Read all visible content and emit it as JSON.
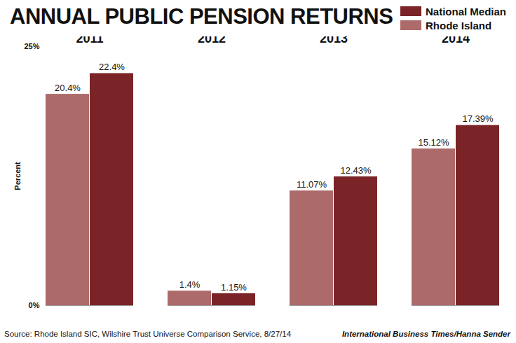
{
  "chart_data": {
    "type": "bar",
    "title": "ANNUAL PUBLIC PENSION RETURNS",
    "y_label": "Percent",
    "source": "Source: Rhode Island SIC, Wilshire Trust Universe Comparison Service, 8/27/14",
    "credit": "International Business Times/Hanna Sender",
    "categories": [
      "2011",
      "2012",
      "2013",
      "2014"
    ],
    "series": [
      {
        "name": "National Median",
        "color": "#7a2428",
        "values": [
          22.4,
          1.15,
          12.43,
          17.39
        ],
        "value_labels": [
          "22.4%",
          "1.15%",
          "12.43%",
          "17.39%"
        ]
      },
      {
        "name": "Rhode Island",
        "color": "#ad6a6b",
        "values": [
          20.4,
          1.4,
          11.07,
          15.12
        ],
        "value_labels": [
          "20.4%",
          "1.4%",
          "11.07%",
          "15.12%"
        ]
      }
    ],
    "ylim": [
      0,
      25
    ],
    "yticks": [
      {
        "value": 0,
        "label": "0%"
      },
      {
        "value": 25,
        "label": "25%"
      }
    ],
    "legend": "top-right",
    "data_labels": true,
    "grid": false
  }
}
